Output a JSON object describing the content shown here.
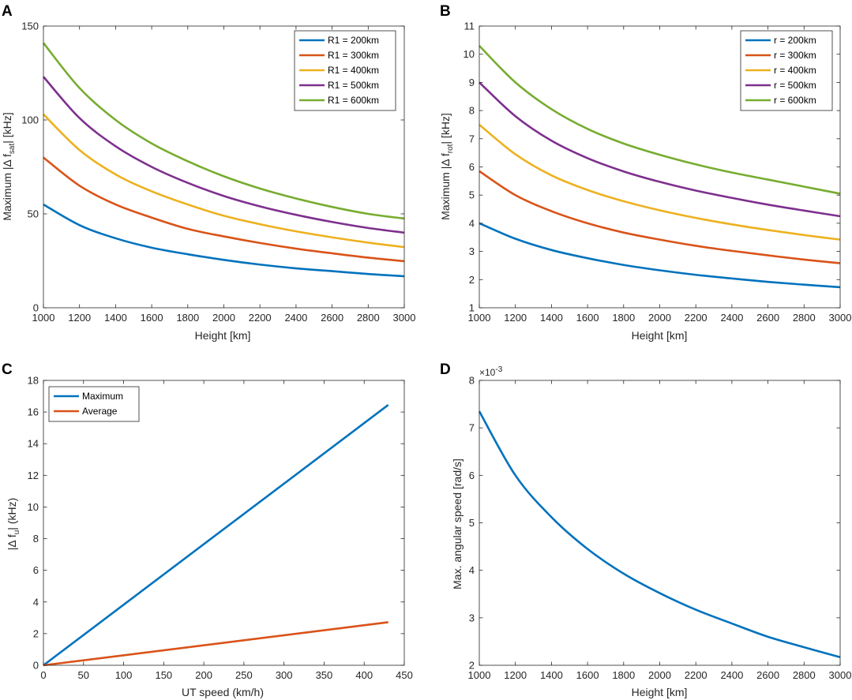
{
  "chart_data": [
    {
      "id": "A",
      "panel_label": "A",
      "type": "line",
      "xlabel": "Height [km]",
      "ylabel_parts": [
        "Maximum |Δ f",
        "sat",
        "| [kHz]"
      ],
      "xlim": [
        1000,
        3000
      ],
      "ylim": [
        0,
        150
      ],
      "xticks": [
        1000,
        1200,
        1400,
        1600,
        1800,
        2000,
        2200,
        2400,
        2600,
        2800,
        3000
      ],
      "yticks": [
        0,
        50,
        100,
        150
      ],
      "legend_position": "top-right",
      "x": [
        1000,
        1200,
        1400,
        1600,
        1800,
        2000,
        2200,
        2400,
        2600,
        2800,
        3000
      ],
      "series": [
        {
          "name": "R1 = 200km",
          "color": "#0072BD",
          "values": [
            55,
            44,
            37,
            32,
            28.5,
            25.5,
            23,
            21,
            19.5,
            18,
            16.8
          ]
        },
        {
          "name": "R1 = 300km",
          "color": "#D95319",
          "values": [
            80,
            65,
            55,
            48,
            42,
            38,
            34.5,
            31.5,
            29,
            26.7,
            24.8
          ]
        },
        {
          "name": "R1 = 400km",
          "color": "#EDB120",
          "values": [
            103,
            84,
            71,
            62,
            55,
            49,
            44.5,
            40.7,
            37.5,
            34.7,
            32.3
          ]
        },
        {
          "name": "R1 = 500km",
          "color": "#7E2F8E",
          "values": [
            123,
            101,
            86,
            75,
            66.5,
            59.5,
            54,
            49.5,
            45.7,
            42.5,
            40
          ]
        },
        {
          "name": "R1 = 600km",
          "color": "#77AC30",
          "values": [
            141,
            117,
            100,
            87.5,
            78,
            70,
            63.5,
            58.2,
            53.7,
            50,
            47.5
          ]
        }
      ]
    },
    {
      "id": "B",
      "panel_label": "B",
      "type": "line",
      "xlabel": "Height [km]",
      "ylabel_parts": [
        "Maximum |Δ f",
        "rot",
        "| [kHz]"
      ],
      "xlim": [
        1000,
        3000
      ],
      "ylim": [
        1,
        11
      ],
      "xticks": [
        1000,
        1200,
        1400,
        1600,
        1800,
        2000,
        2200,
        2400,
        2600,
        2800,
        3000
      ],
      "yticks": [
        1,
        2,
        3,
        4,
        5,
        6,
        7,
        8,
        9,
        10,
        11
      ],
      "legend_position": "top-right",
      "x": [
        1000,
        1200,
        1400,
        1600,
        1800,
        2000,
        2200,
        2400,
        2600,
        2800,
        3000
      ],
      "series": [
        {
          "name": "r = 200km",
          "color": "#0072BD",
          "values": [
            4.0,
            3.45,
            3.05,
            2.76,
            2.52,
            2.33,
            2.17,
            2.04,
            1.92,
            1.82,
            1.73
          ]
        },
        {
          "name": "r = 300km",
          "color": "#D95319",
          "values": [
            5.85,
            5.0,
            4.43,
            4.0,
            3.67,
            3.42,
            3.2,
            3.02,
            2.86,
            2.71,
            2.58
          ]
        },
        {
          "name": "r = 400km",
          "color": "#EDB120",
          "values": [
            7.5,
            6.45,
            5.7,
            5.18,
            4.78,
            4.46,
            4.19,
            3.96,
            3.76,
            3.58,
            3.42
          ]
        },
        {
          "name": "r = 500km",
          "color": "#7E2F8E",
          "values": [
            9.0,
            7.8,
            6.93,
            6.31,
            5.84,
            5.47,
            5.16,
            4.9,
            4.66,
            4.45,
            4.25
          ]
        },
        {
          "name": "r = 600km",
          "color": "#77AC30",
          "values": [
            10.3,
            9.0,
            8.05,
            7.35,
            6.83,
            6.43,
            6.09,
            5.8,
            5.55,
            5.3,
            5.05
          ]
        }
      ]
    },
    {
      "id": "C",
      "panel_label": "C",
      "type": "line",
      "xlabel": "UT speed (km/h)",
      "ylabel_parts": [
        "|Δ f",
        "u",
        "| (kHz)"
      ],
      "xlim": [
        0,
        450
      ],
      "ylim": [
        0,
        18
      ],
      "xticks": [
        0,
        50,
        100,
        150,
        200,
        250,
        300,
        350,
        400,
        450
      ],
      "yticks": [
        0,
        2,
        4,
        6,
        8,
        10,
        12,
        14,
        16,
        18
      ],
      "legend_position": "top-left",
      "x": [
        0,
        430
      ],
      "series": [
        {
          "name": "Maximum",
          "color": "#0072BD",
          "values": [
            0,
            16.45
          ]
        },
        {
          "name": "Average",
          "color": "#D95319",
          "values": [
            0,
            2.72
          ]
        }
      ]
    },
    {
      "id": "D",
      "panel_label": "D",
      "type": "line",
      "xlabel": "Height [km]",
      "ylabel_parts": [
        "Max. angular speed [rad/s]"
      ],
      "exponent_base": "×10",
      "exponent_power": "-3",
      "xlim": [
        1000,
        3000
      ],
      "ylim": [
        2,
        8
      ],
      "xticks": [
        1000,
        1200,
        1400,
        1600,
        1800,
        2000,
        2200,
        2400,
        2600,
        2800,
        3000
      ],
      "yticks": [
        2,
        3,
        4,
        5,
        6,
        7,
        8
      ],
      "legend_position": "none",
      "x": [
        1000,
        1200,
        1400,
        1600,
        1800,
        2000,
        2200,
        2400,
        2600,
        2800,
        3000
      ],
      "series": [
        {
          "name": "angular speed",
          "color": "#0072BD",
          "values": [
            7.35,
            6.0,
            5.12,
            4.45,
            3.93,
            3.52,
            3.17,
            2.88,
            2.6,
            2.38,
            2.17
          ]
        }
      ]
    }
  ]
}
